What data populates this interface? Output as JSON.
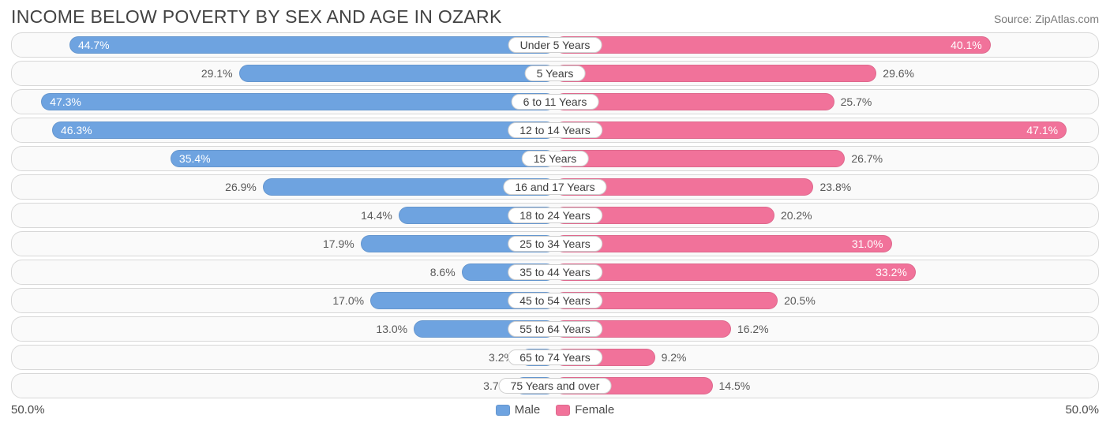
{
  "title": "INCOME BELOW POVERTY BY SEX AND AGE IN OZARK",
  "source": "Source: ZipAtlas.com",
  "colors": {
    "male": "#6ea3e0",
    "female": "#f1729a",
    "row_bg": "#fafafa",
    "row_border": "#d8d8d8",
    "text_muted": "#5a5a5a",
    "title_color": "#424242"
  },
  "axis": {
    "max_pct": 50.0,
    "left_label": "50.0%",
    "right_label": "50.0%"
  },
  "legend": {
    "male": "Male",
    "female": "Female"
  },
  "inside_label_threshold_pct": 30.0,
  "rows": [
    {
      "category": "Under 5 Years",
      "male": 44.7,
      "female": 40.1
    },
    {
      "category": "5 Years",
      "male": 29.1,
      "female": 29.6
    },
    {
      "category": "6 to 11 Years",
      "male": 47.3,
      "female": 25.7
    },
    {
      "category": "12 to 14 Years",
      "male": 46.3,
      "female": 47.1
    },
    {
      "category": "15 Years",
      "male": 35.4,
      "female": 26.7
    },
    {
      "category": "16 and 17 Years",
      "male": 26.9,
      "female": 23.8
    },
    {
      "category": "18 to 24 Years",
      "male": 14.4,
      "female": 20.2
    },
    {
      "category": "25 to 34 Years",
      "male": 17.9,
      "female": 31.0
    },
    {
      "category": "35 to 44 Years",
      "male": 8.6,
      "female": 33.2
    },
    {
      "category": "45 to 54 Years",
      "male": 17.0,
      "female": 20.5
    },
    {
      "category": "55 to 64 Years",
      "male": 13.0,
      "female": 16.2
    },
    {
      "category": "65 to 74 Years",
      "male": 3.2,
      "female": 9.2
    },
    {
      "category": "75 Years and over",
      "male": 3.7,
      "female": 14.5
    }
  ]
}
